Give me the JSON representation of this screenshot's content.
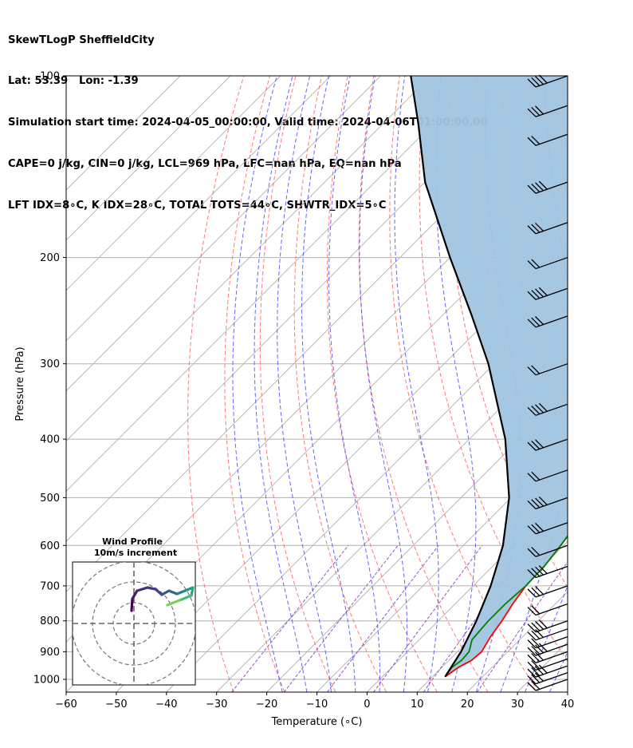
{
  "header": {
    "line1": "SkewTLogP SheffieldCity",
    "line2": "Lat: 53.39   Lon: -1.39",
    "line3": "Simulation start time: 2024-04-05_00:00:00, Valid time: 2024-04-06T01:00:00.00",
    "line4": "CAPE=0 j/kg, CIN=0 j/kg, LCL=969 hPa, LFC=nan hPa, EQ=nan hPa",
    "line5": "LFT IDX=8∘C, K IDX=28∘C, TOTAL TOTS=44∘C, SHWTR_IDX=5∘C"
  },
  "chart_data": {
    "type": "line",
    "subtype": "skew-t log-p",
    "xlabel": "Temperature (∘C)",
    "ylabel": "Pressure (hPa)",
    "xlim": [
      -60,
      40
    ],
    "ylim": [
      1050,
      100
    ],
    "yscale": "log",
    "x_ticks": [
      -60,
      -50,
      -40,
      -30,
      -20,
      -10,
      0,
      10,
      20,
      30,
      40
    ],
    "x_tick_labels": [
      "−60",
      "−50",
      "−40",
      "−30",
      "−20",
      "−10",
      "0",
      "10",
      "20",
      "30",
      "40"
    ],
    "y_ticks": [
      1000,
      900,
      800,
      700,
      600,
      500,
      400,
      300,
      200,
      100
    ],
    "y_tick_labels": [
      "1000",
      "900",
      "800",
      "700",
      "600",
      "500",
      "400",
      "300",
      "200",
      "100"
    ],
    "grid": true,
    "series": [
      {
        "color": "#ff0000",
        "pressure": [
          990,
          955,
          930,
          900,
          850,
          800,
          750,
          700,
          650,
          600,
          550,
          500,
          450,
          400,
          350,
          300,
          250,
          210,
          190,
          180,
          165,
          150,
          140,
          130,
          120,
          110,
          100
        ],
        "temperature": [
          12.5,
          13.3,
          14.5,
          14.8,
          13.6,
          12.7,
          11.5,
          10.5,
          10.3,
          9.4,
          8.3,
          6.9,
          5.6,
          4.3,
          2.2,
          -1.6,
          -7.3,
          -13.3,
          -17,
          -15.5,
          -17.3,
          -15,
          -13.8,
          -10.5,
          -8.4,
          -6.2,
          -3.6
        ]
      },
      {
        "color": "#008000",
        "pressure": [
          990,
          955,
          930,
          900,
          860,
          800,
          750,
          700,
          650,
          600,
          550,
          500,
          450,
          400,
          350,
          300,
          250,
          200,
          190,
          180,
          165,
          150,
          140,
          120,
          100
        ],
        "temperature": [
          12.5,
          12.0,
          12.5,
          12.3,
          10.5,
          10.0,
          10.0,
          10.5,
          10.3,
          9.4,
          8.2,
          6.8,
          4.8,
          2.3,
          0.1,
          -3.5,
          -9.0,
          -17.0,
          -19.4,
          -17.5,
          -20.3,
          -18.5,
          -18.5,
          -14.5,
          -10.5
        ]
      },
      {
        "color": "#000000",
        "pressure": [
          990,
          900,
          800,
          700,
          600,
          500,
          400,
          300,
          250,
          200,
          150,
          120,
          100
        ],
        "temperature": [
          12.5,
          10.7,
          7.6,
          3.5,
          -2.1,
          -10.4,
          -22.8,
          -41.2,
          -54.0,
          -70.0,
          -90.0,
          -103.0,
          -114.0
        ]
      }
    ],
    "shaded_region": {
      "color": "#a0c4df",
      "between": "parcel profile and temperature"
    },
    "background_lines": {
      "dry_adiabats": "dashed #ff7070",
      "moist_adiabats": "dashed #6a6aff",
      "mixing_ratio": "dashed #a050d0",
      "isotherms": "solid gray"
    },
    "wind_barbs": {
      "pressure": [
        1000,
        975,
        950,
        925,
        900,
        875,
        850,
        825,
        800,
        750,
        700,
        650,
        600,
        550,
        500,
        450,
        400,
        350,
        300,
        250,
        225,
        200,
        175,
        150,
        125,
        112,
        100
      ],
      "description": "westerly wind barbs, roughly 20–45 knots"
    },
    "inset": {
      "title_line1": "Wind Profile",
      "title_line2": "10m/s increment",
      "type": "hodograph",
      "rings_ms": [
        10,
        20,
        30
      ]
    }
  }
}
